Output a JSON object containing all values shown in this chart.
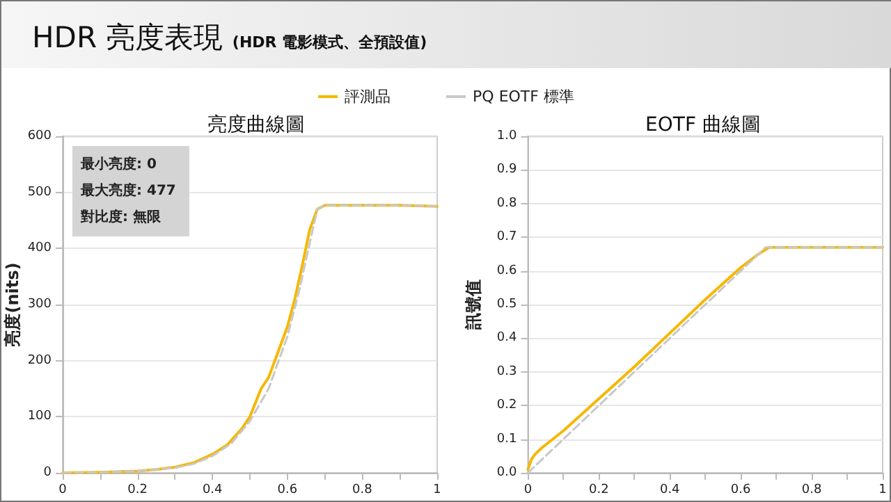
{
  "chart_data": [
    {
      "type": "line",
      "title": "亮度曲線圖",
      "ylabel": "亮度(nits)",
      "legend": "top",
      "grid": "y",
      "line_style": "solid",
      "marker": "none",
      "annotations": [
        "HDR 亮度表現",
        "(HDR 電影模式、全預設值)",
        "最小亮度: 0",
        "最大亮度: 477",
        "對比度: 無限"
      ],
      "xlim": [
        0,
        1
      ],
      "xticks": [
        0,
        {
          "value": 0.1,
          "label": null
        },
        0.2,
        {
          "value": 0.3,
          "label": null
        },
        0.4,
        {
          "value": 0.5,
          "label": null
        },
        0.6,
        {
          "value": 0.7,
          "label": null
        },
        0.8,
        {
          "value": 0.9,
          "label": null
        },
        1
      ],
      "ylim": [
        0,
        600
      ],
      "yticks": [
        0,
        100,
        200,
        300,
        400,
        500,
        600
      ],
      "series": [
        {
          "name": "評測品",
          "color": "#f5b800",
          "x": [
            0,
            0.1,
            0.2,
            0.25,
            0.3,
            0.35,
            0.4,
            0.44,
            0.48,
            0.5,
            0.53,
            0.55,
            0.6,
            0.62,
            0.64,
            0.66,
            0.68,
            0.7,
            0.8,
            0.9,
            1
          ],
          "values": [
            0,
            1,
            3,
            6,
            10,
            18,
            33,
            50,
            80,
            100,
            150,
            170,
            260,
            310,
            370,
            434,
            470,
            477,
            477,
            477,
            475
          ]
        },
        {
          "name": "PQ EOTF 標準",
          "color": "#c8c8c8",
          "line_style": "dashed",
          "x": [
            0,
            0.1,
            0.2,
            0.3,
            0.35,
            0.4,
            0.45,
            0.5,
            0.55,
            0.6,
            0.63,
            0.65,
            0.67,
            0.68,
            0.7,
            0.8,
            0.9,
            1
          ],
          "values": [
            0,
            1,
            3,
            9,
            16,
            30,
            52,
            92,
            150,
            243,
            320,
            380,
            440,
            470,
            477,
            477,
            477,
            475
          ]
        }
      ]
    },
    {
      "type": "line",
      "title": "EOTF 曲線圖",
      "ylabel": "訊號值",
      "grid": "y",
      "line_style": "solid",
      "marker": "none",
      "xlim": [
        0,
        1
      ],
      "xticks": [
        0,
        {
          "value": 0.1,
          "label": null
        },
        0.2,
        {
          "value": 0.3,
          "label": null
        },
        0.4,
        {
          "value": 0.5,
          "label": null
        },
        0.6,
        {
          "value": 0.7,
          "label": null
        },
        0.8,
        {
          "value": 0.9,
          "label": null
        },
        1
      ],
      "ylim": [
        0,
        1
      ],
      "yticks": [
        {
          "value": 0,
          "label": "0.0"
        },
        0.1,
        0.2,
        0.3,
        0.4,
        0.5,
        0.6,
        0.7,
        0.8,
        0.9,
        {
          "value": 1,
          "label": "1.0"
        }
      ],
      "series": [
        {
          "color": "#f5b800",
          "x": [
            0,
            0.01,
            0.02,
            0.04,
            0.1,
            0.2,
            0.3,
            0.4,
            0.5,
            0.6,
            0.65,
            0.68,
            0.8,
            0.9,
            1
          ],
          "values": [
            0.01,
            0.04,
            0.055,
            0.075,
            0.125,
            0.22,
            0.315,
            0.415,
            0.515,
            0.61,
            0.65,
            0.67,
            0.67,
            0.67,
            0.67
          ]
        },
        {
          "color": "#c8c8c8",
          "line_style": "dashed",
          "x": [
            0,
            0.67,
            0.8,
            0.9,
            1
          ],
          "values": [
            0,
            0.67,
            0.67,
            0.67,
            0.67
          ]
        }
      ]
    }
  ]
}
